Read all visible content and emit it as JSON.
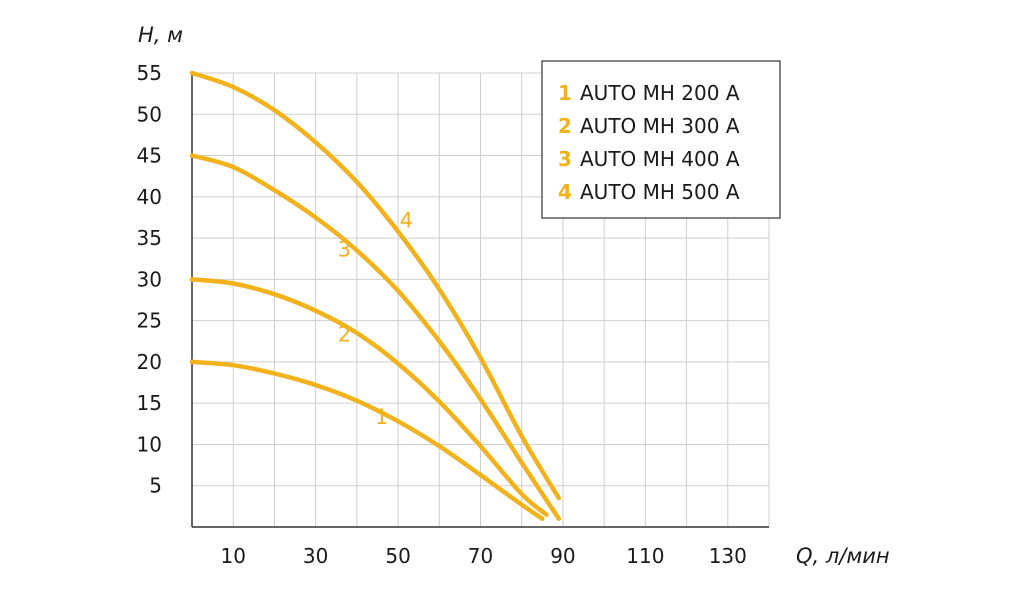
{
  "chart_data": {
    "type": "line",
    "xlabel": "Q, л/мин",
    "ylabel": "H, м",
    "xlim": [
      0,
      140
    ],
    "ylim": [
      0,
      55
    ],
    "x_ticks": [
      10,
      30,
      50,
      70,
      90,
      110,
      130
    ],
    "y_ticks": [
      5,
      10,
      15,
      20,
      25,
      30,
      35,
      40,
      45,
      50,
      55
    ],
    "grid": true,
    "legend_position": "top-right",
    "series": [
      {
        "id": "1",
        "name": "AUTO MH 200 A",
        "curve_label": "1",
        "label_at": [
          46,
          12.5
        ],
        "x": [
          0,
          10,
          20,
          30,
          40,
          50,
          60,
          70,
          80,
          85
        ],
        "y": [
          20,
          19.6,
          18.6,
          17.2,
          15.3,
          12.8,
          9.8,
          6.3,
          2.7,
          1
        ]
      },
      {
        "id": "2",
        "name": "AUTO MH 300 A",
        "curve_label": "2",
        "label_at": [
          37,
          22.5
        ],
        "x": [
          0,
          10,
          20,
          30,
          40,
          50,
          60,
          70,
          80,
          86
        ],
        "y": [
          30,
          29.5,
          28.2,
          26.2,
          23.5,
          19.8,
          15.2,
          9.8,
          4,
          1.5
        ]
      },
      {
        "id": "3",
        "name": "AUTO MH 400 A",
        "curve_label": "3",
        "label_at": [
          37,
          32.8
        ],
        "x": [
          0,
          10,
          20,
          30,
          40,
          50,
          60,
          70,
          80,
          89
        ],
        "y": [
          45,
          43.6,
          40.8,
          37.5,
          33.5,
          28.6,
          22.5,
          15.5,
          7.8,
          1
        ]
      },
      {
        "id": "4",
        "name": "AUTO MH 500 A",
        "curve_label": "4",
        "label_at": [
          52,
          36.3
        ],
        "x": [
          0,
          10,
          20,
          30,
          40,
          50,
          60,
          70,
          80,
          89
        ],
        "y": [
          55,
          53.3,
          50.5,
          46.6,
          41.8,
          35.8,
          28.8,
          20.5,
          11,
          3.5
        ]
      }
    ]
  },
  "colors": {
    "curve": "#f2b21c",
    "grid": "#cfcfcf",
    "axis": "#333333",
    "text": "#1a1a1a"
  }
}
